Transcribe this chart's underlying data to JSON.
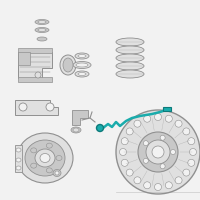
{
  "bg_color": "#f2f2f2",
  "part_color": "#c8c8c8",
  "part_light": "#e0e0e0",
  "part_dark": "#a8a8a8",
  "outline_color": "#909090",
  "highlight_color": "#1aacac",
  "highlight_dark": "#0d7a7a",
  "figsize": [
    2.0,
    2.0
  ],
  "dpi": 100
}
